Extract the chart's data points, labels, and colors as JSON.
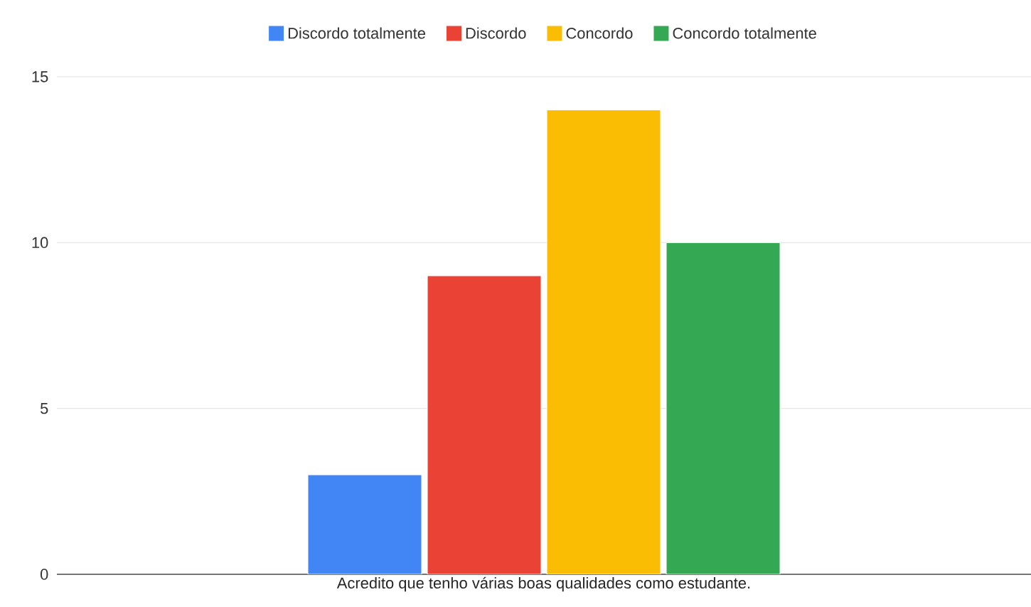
{
  "chart_data": {
    "type": "bar",
    "categories": [
      "Acredito que tenho várias boas qualidades como estudante."
    ],
    "series": [
      {
        "name": "Discordo totalmente",
        "color": "#4285f4",
        "values": [
          3
        ]
      },
      {
        "name": "Discordo",
        "color": "#ea4335",
        "values": [
          9
        ]
      },
      {
        "name": "Concordo",
        "color": "#fbbc04",
        "values": [
          14
        ]
      },
      {
        "name": "Concordo totalmente",
        "color": "#34a853",
        "values": [
          10
        ]
      }
    ],
    "ylim": [
      0,
      15
    ],
    "yticks": [
      0,
      5,
      10,
      15
    ],
    "grid": "y",
    "legend": "top"
  }
}
